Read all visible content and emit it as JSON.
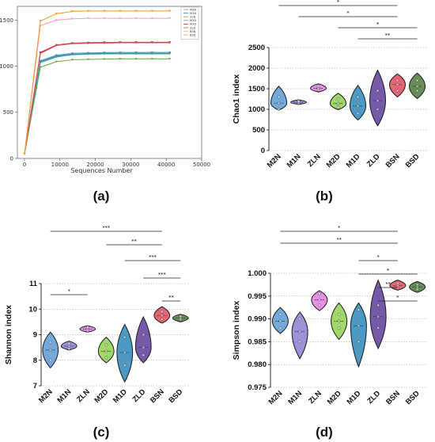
{
  "colors": {
    "M2N": "#5b9bd5",
    "M1N": "#8a7fd1",
    "ZLN": "#e37ce0",
    "M2D": "#8fd14f",
    "M1D": "#2e87b8",
    "ZLD": "#5e3c99",
    "BSN": "#e24a5a",
    "BSD": "#4e7a3a"
  },
  "chart_data": [
    {
      "id": "a",
      "panel_label": "(a)",
      "type": "line",
      "xlabel": "Sequences Number",
      "ylabel": "",
      "xlim": [
        -2000,
        50000
      ],
      "ylim": [
        0,
        1650
      ],
      "xticks": [
        0,
        10000,
        20000,
        30000,
        40000,
        50000
      ],
      "yticks": [
        0,
        500,
        1000,
        1500
      ],
      "x": [
        0,
        4500,
        9000,
        13500,
        18000,
        22500,
        27000,
        31500,
        36000,
        41000
      ],
      "legend_position": "top-right",
      "series": [
        {
          "name": "M2N",
          "color": "#5b9bd5",
          "values": [
            50,
            1060,
            1120,
            1140,
            1145,
            1148,
            1150,
            1150,
            1150,
            1150
          ]
        },
        {
          "name": "M1N",
          "color": "#2e87b8",
          "values": [
            50,
            1050,
            1110,
            1130,
            1135,
            1140,
            1140,
            1140,
            1140,
            1140
          ]
        },
        {
          "name": "ZLN",
          "color": "#6fb04a",
          "values": [
            50,
            990,
            1050,
            1070,
            1075,
            1078,
            1080,
            1080,
            1080,
            1080
          ]
        },
        {
          "name": "M2D",
          "color": "#3aa68a",
          "values": [
            50,
            1040,
            1100,
            1125,
            1130,
            1135,
            1135,
            1135,
            1135,
            1135
          ]
        },
        {
          "name": "M1D",
          "color": "#b03040",
          "values": [
            50,
            1150,
            1230,
            1250,
            1255,
            1258,
            1260,
            1260,
            1260,
            1260
          ]
        },
        {
          "name": "ZLD",
          "color": "#e24a5a",
          "values": [
            50,
            1140,
            1225,
            1245,
            1250,
            1252,
            1255,
            1255,
            1255,
            1255
          ]
        },
        {
          "name": "BSN",
          "color": "#f2a5b5",
          "values": [
            50,
            1440,
            1500,
            1515,
            1520,
            1520,
            1520,
            1520,
            1520,
            1520
          ]
        },
        {
          "name": "BSD",
          "color": "#f0a030",
          "values": [
            50,
            1490,
            1570,
            1595,
            1600,
            1600,
            1600,
            1600,
            1600,
            1600
          ]
        }
      ]
    },
    {
      "id": "b",
      "panel_label": "(b)",
      "type": "violin",
      "ylabel": "Chao1 index",
      "ylim": [
        0,
        2500
      ],
      "yticks": [
        0,
        500,
        1000,
        1500,
        2000,
        2500
      ],
      "categories": [
        "M2N",
        "M1N",
        "ZLN",
        "M2D",
        "M1D",
        "ZLD",
        "BSN",
        "BSD"
      ],
      "groups": [
        {
          "name": "M2N",
          "min": 980,
          "max": 1560,
          "median": 1150,
          "points": [
            1000,
            1150,
            1300
          ]
        },
        {
          "name": "M1N",
          "min": 1120,
          "max": 1230,
          "median": 1170,
          "points": [
            1140,
            1170,
            1200
          ]
        },
        {
          "name": "ZLN",
          "min": 1420,
          "max": 1620,
          "median": 1510,
          "points": [
            1470,
            1510,
            1560
          ]
        },
        {
          "name": "M2D",
          "min": 990,
          "max": 1390,
          "median": 1140,
          "points": [
            1050,
            1140,
            1250
          ]
        },
        {
          "name": "M1D",
          "min": 740,
          "max": 1580,
          "median": 1080,
          "points": [
            900,
            1080,
            1300
          ]
        },
        {
          "name": "ZLD",
          "min": 600,
          "max": 1950,
          "median": 1210,
          "points": [
            1000,
            1210,
            1450
          ]
        },
        {
          "name": "BSN",
          "min": 1300,
          "max": 1860,
          "median": 1600,
          "points": [
            1450,
            1600,
            1700
          ]
        },
        {
          "name": "BSD",
          "min": 1260,
          "max": 1880,
          "median": 1560,
          "points": [
            1450,
            1560,
            1700
          ]
        }
      ],
      "significance": [
        {
          "from": "M2N",
          "to": "BSN",
          "label": "*"
        },
        {
          "from": "M1N",
          "to": "BSN",
          "label": "*"
        },
        {
          "from": "M2D",
          "to": "BSD",
          "label": "*"
        },
        {
          "from": "M1D",
          "to": "BSD",
          "label": "**"
        }
      ]
    },
    {
      "id": "c",
      "panel_label": "(c)",
      "type": "violin",
      "ylabel": "Shannon index",
      "ylim": [
        7,
        11
      ],
      "yticks": [
        7,
        8,
        9,
        10,
        11
      ],
      "categories": [
        "M2N",
        "M1N",
        "ZLN",
        "M2D",
        "M1D",
        "ZLD",
        "BSN",
        "BSD"
      ],
      "groups": [
        {
          "name": "M2N",
          "min": 7.7,
          "max": 9.1,
          "median": 8.4,
          "points": [
            8.0,
            8.4,
            8.7
          ]
        },
        {
          "name": "M1N",
          "min": 8.4,
          "max": 8.75,
          "median": 8.55,
          "points": [
            8.45,
            8.55,
            8.65
          ]
        },
        {
          "name": "ZLN",
          "min": 9.1,
          "max": 9.35,
          "median": 9.22,
          "points": [
            9.15,
            9.22,
            9.3
          ]
        },
        {
          "name": "M2D",
          "min": 7.9,
          "max": 8.9,
          "median": 8.35,
          "points": [
            8.1,
            8.35,
            8.6
          ]
        },
        {
          "name": "M1D",
          "min": 7.15,
          "max": 9.4,
          "median": 8.3,
          "points": [
            7.8,
            8.3,
            8.9
          ]
        },
        {
          "name": "ZLD",
          "min": 7.9,
          "max": 9.7,
          "median": 8.5,
          "points": [
            8.2,
            8.5,
            9.0
          ]
        },
        {
          "name": "BSN",
          "min": 9.45,
          "max": 10.1,
          "median": 9.75,
          "points": [
            9.6,
            9.75,
            9.9
          ]
        },
        {
          "name": "BSD",
          "min": 9.5,
          "max": 9.8,
          "median": 9.65,
          "points": [
            9.58,
            9.65,
            9.72
          ]
        }
      ],
      "significance": [
        {
          "from": "M2N",
          "to": "BSN",
          "label": "***"
        },
        {
          "from": "M2D",
          "to": "BSN",
          "label": "**"
        },
        {
          "from": "M1D",
          "to": "BSD",
          "label": "***"
        },
        {
          "from": "ZLD",
          "to": "BSD",
          "label": "***"
        },
        {
          "from": "ZLD",
          "to": "BSD",
          "label": "**"
        },
        {
          "from": "M2N",
          "to": "ZLN",
          "label": "*"
        }
      ]
    },
    {
      "id": "d",
      "panel_label": "(d)",
      "type": "violin",
      "ylabel": "Simpson index",
      "ylim": [
        0.975,
        1.0
      ],
      "yticks": [
        0.975,
        0.98,
        0.985,
        0.99,
        0.995,
        1.0
      ],
      "yticklabels": [
        "0.975",
        "0.980",
        "0.985",
        "0.990",
        "0.995",
        "1.000"
      ],
      "categories": [
        "M2N",
        "M1N",
        "ZLN",
        "M2D",
        "M1D",
        "ZLD",
        "BSN",
        "BSD"
      ],
      "groups": [
        {
          "name": "M2N",
          "min": 0.9868,
          "max": 0.9925,
          "median": 0.9895,
          "points": [
            0.988,
            0.9895,
            0.991
          ]
        },
        {
          "name": "M1N",
          "min": 0.9813,
          "max": 0.9915,
          "median": 0.9872,
          "points": [
            0.985,
            0.9872,
            0.99
          ]
        },
        {
          "name": "ZLN",
          "min": 0.9918,
          "max": 0.9962,
          "median": 0.9942,
          "points": [
            0.993,
            0.9942,
            0.9955
          ]
        },
        {
          "name": "M2D",
          "min": 0.9855,
          "max": 0.9935,
          "median": 0.9895,
          "points": [
            0.988,
            0.9895,
            0.991
          ]
        },
        {
          "name": "M1D",
          "min": 0.9795,
          "max": 0.9935,
          "median": 0.9885,
          "points": [
            0.985,
            0.9885,
            0.992
          ]
        },
        {
          "name": "ZLD",
          "min": 0.9835,
          "max": 0.9985,
          "median": 0.9905,
          "points": [
            0.988,
            0.9905,
            0.993
          ]
        },
        {
          "name": "BSN",
          "min": 0.9963,
          "max": 0.9985,
          "median": 0.9973,
          "points": [
            0.9968,
            0.9973,
            0.9978
          ]
        },
        {
          "name": "BSD",
          "min": 0.9958,
          "max": 0.9982,
          "median": 0.997,
          "points": [
            0.9965,
            0.997,
            0.9975
          ]
        }
      ],
      "significance": [
        {
          "from": "M2N",
          "to": "BSN",
          "label": "*"
        },
        {
          "from": "M2N",
          "to": "BSN",
          "label": "**"
        },
        {
          "from": "M1D",
          "to": "BSN",
          "label": "*"
        },
        {
          "from": "M1D",
          "to": "BSD",
          "label": "*"
        },
        {
          "from": "ZLD",
          "to": "BSN",
          "label": "**"
        },
        {
          "from": "ZLD",
          "to": "BSD",
          "label": "*"
        }
      ]
    }
  ]
}
